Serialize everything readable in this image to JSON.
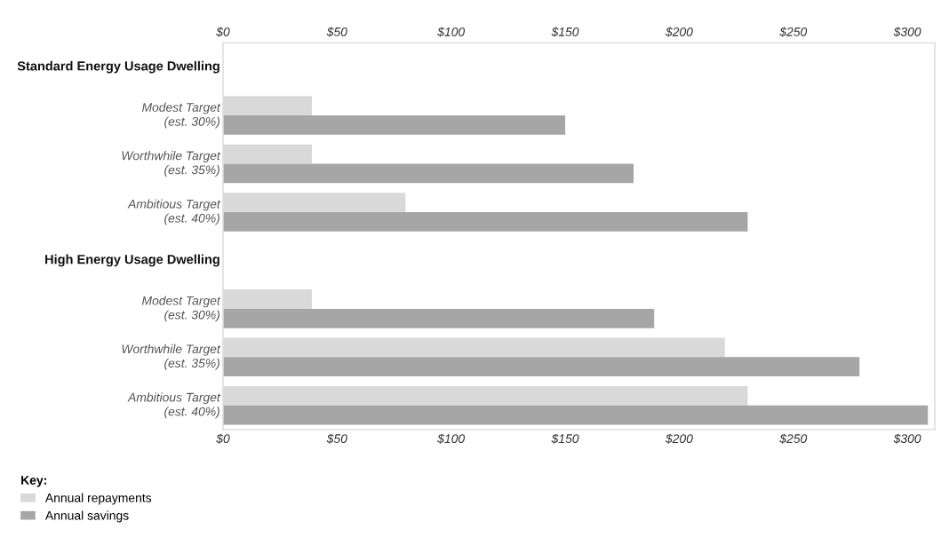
{
  "chart_data": {
    "type": "bar",
    "orientation": "horizontal",
    "legend": "bottom left",
    "legend_title": "Key:",
    "grid": false,
    "categories": [
      "Standard Energy Usage Dwelling",
      "Modest Target\n(est. 30%)",
      "Worthwhile Target\n(est. 35%)",
      "Ambitious Target\n(est. 40%)",
      "High Energy Usage Dwelling",
      "Modest Target\n(est. 30%)",
      "Worthwhile Target\n(est. 35%)",
      "Ambitious Target\n(est. 40%)"
    ],
    "series": [
      {
        "name": "Annual repayments",
        "color": "#d9d9d9",
        "values": [
          null,
          39,
          39,
          80,
          null,
          39,
          220,
          230
        ]
      },
      {
        "name": "Annual savings",
        "color": "#a6a6a6",
        "values": [
          null,
          150,
          180,
          230,
          null,
          189,
          279,
          309
        ]
      }
    ],
    "xlim": [
      0,
      312
    ],
    "xticks": [
      {
        "value": 0,
        "label": "$0"
      },
      {
        "value": 50,
        "label": "$50"
      },
      {
        "value": 100,
        "label": "$100"
      },
      {
        "value": 150,
        "label": "$150"
      },
      {
        "value": 200,
        "label": "$200"
      },
      {
        "value": 250,
        "label": "$250"
      },
      {
        "value": 300,
        "label": "$300"
      }
    ],
    "x2lim": [
      0,
      312
    ],
    "x2ticks": [
      {
        "value": 0,
        "label": "$0"
      },
      {
        "value": 50,
        "label": "$50"
      },
      {
        "value": 100,
        "label": "$100"
      },
      {
        "value": 150,
        "label": "$150"
      },
      {
        "value": 200,
        "label": "$200"
      },
      {
        "value": 250,
        "label": "$250"
      },
      {
        "value": 300,
        "label": "$300"
      }
    ]
  }
}
